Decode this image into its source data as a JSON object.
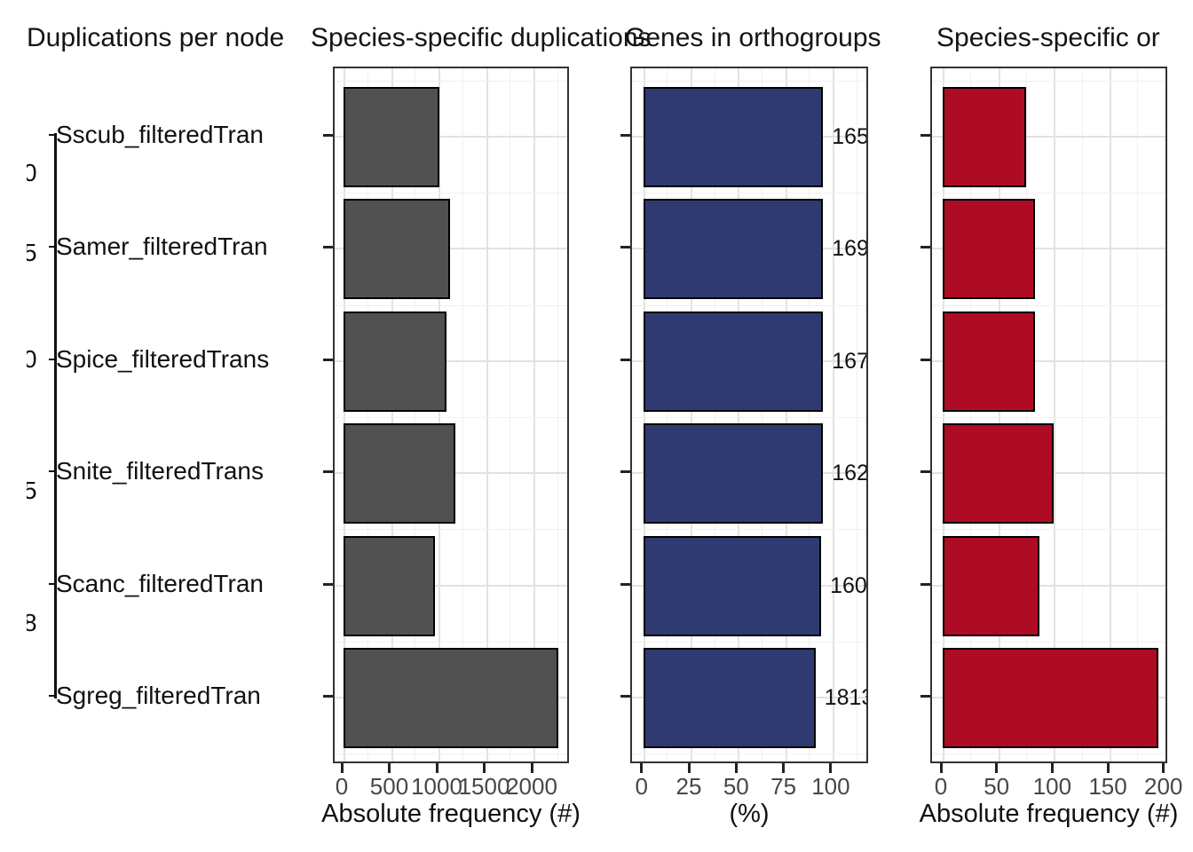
{
  "figure": {
    "background": "#ffffff",
    "titles": [
      {
        "text": "Duplications per node"
      },
      {
        "text": "Species-specific duplications"
      },
      {
        "text": "Genes in orthogroups"
      },
      {
        "text": "Species-specific or"
      }
    ]
  },
  "tree": {
    "node_labels": [
      "0",
      "5",
      "0",
      "5",
      "8"
    ],
    "tip_labels": [
      "Sscub_filteredTran",
      "Samer_filteredTran",
      "Spice_filteredTrans",
      "Snite_filteredTrans",
      "Scanc_filteredTran",
      "Sgreg_filteredTran"
    ]
  },
  "chart_data": [
    {
      "type": "bar",
      "orientation": "horizontal",
      "title": "Species-specific duplications",
      "categories": [
        "Sscub_filteredTran",
        "Samer_filteredTran",
        "Spice_filteredTrans",
        "Snite_filteredTrans",
        "Scanc_filteredTran",
        "Sgreg_filteredTran"
      ],
      "values": [
        1010,
        1125,
        1085,
        1180,
        965,
        2260
      ],
      "xlabel": "Absolute frequency (#)",
      "xticks": [
        0,
        500,
        1000,
        1500,
        2000
      ],
      "xlim": [
        0,
        2390
      ],
      "grid": true,
      "legend": false,
      "bar_color": "#515151",
      "bar_border": "#000000"
    },
    {
      "type": "bar",
      "orientation": "horizontal",
      "title": "Genes in orthogroups",
      "categories": [
        "Sscub_filteredTran",
        "Samer_filteredTran",
        "Spice_filteredTrans",
        "Snite_filteredTrans",
        "Scanc_filteredTran",
        "Sgreg_filteredTran"
      ],
      "values": [
        95,
        95,
        95,
        95,
        94,
        91
      ],
      "bar_labels": [
        "165",
        "169",
        "167",
        "162",
        "160",
        "1813"
      ],
      "xlabel": "(%)",
      "xticks": [
        0,
        25,
        50,
        75,
        100
      ],
      "xlim": [
        0,
        120
      ],
      "grid": true,
      "legend": false,
      "bar_color": "#2f3b70",
      "bar_border": "#000000"
    },
    {
      "type": "bar",
      "orientation": "horizontal",
      "title": "Species-specific or",
      "categories": [
        "Sscub_filteredTran",
        "Samer_filteredTran",
        "Spice_filteredTrans",
        "Snite_filteredTrans",
        "Scanc_filteredTran",
        "Sgreg_filteredTran"
      ],
      "values": [
        75,
        83,
        83,
        100,
        87,
        194
      ],
      "xlabel": "Absolute frequency (#)",
      "xticks": [
        0,
        50,
        100,
        150,
        200
      ],
      "xlim": [
        0,
        203
      ],
      "grid": true,
      "legend": false,
      "bar_color": "#ae0c24",
      "bar_border": "#000000"
    }
  ],
  "axis_style": {
    "tick_color": "#222222",
    "tick_label_color": "#474747",
    "grid_major": "#e2e2e2",
    "grid_minor": "#f0f0f0",
    "panel_border": "#333333"
  }
}
